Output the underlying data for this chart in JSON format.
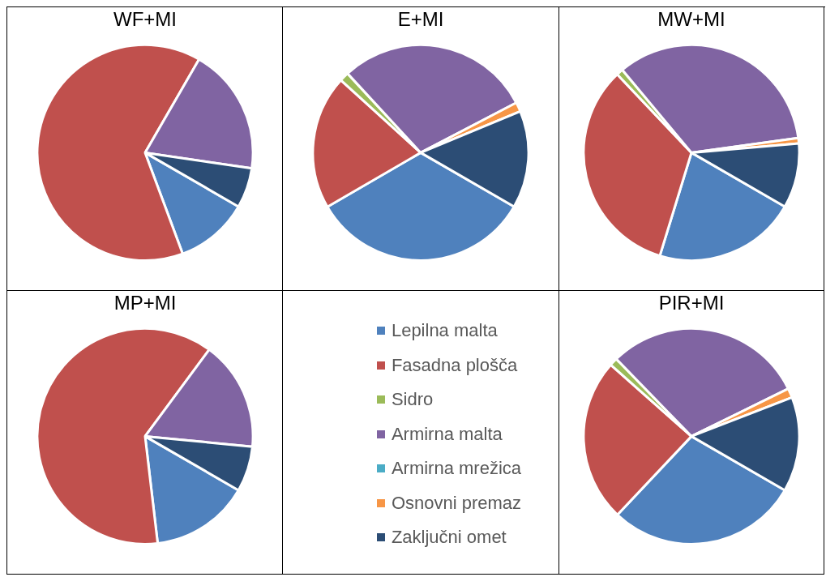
{
  "chart_data": [
    {
      "type": "pie",
      "title": "WF+MI",
      "legend": "bottom right",
      "categories": [
        "Lepilna malta",
        "Fasadna plošča",
        "Sidro",
        "Armirna malta",
        "Armirna mrežica",
        "Osnovni premaz",
        "Zaključni omet"
      ],
      "values": [
        11,
        64,
        0,
        19,
        0,
        0,
        6
      ],
      "colors": [
        "#4f81bd",
        "#c0504d",
        "#9bbb59",
        "#8064a2",
        "#4bacc6",
        "#f79646",
        "#2c4d75"
      ]
    },
    {
      "type": "pie",
      "title": "E+MI",
      "categories": [
        null,
        null,
        null,
        null,
        null,
        null,
        null
      ],
      "values": [
        33.3,
        20.1,
        1.4,
        29.2,
        0,
        1.4,
        14.6
      ],
      "colors": [
        "#4f81bd",
        "#c0504d",
        "#9bbb59",
        "#8064a2",
        "#4bacc6",
        "#f79646",
        "#2c4d75"
      ]
    },
    {
      "type": "pie",
      "title": "MW+MI",
      "categories": [
        null,
        null,
        null,
        null,
        null,
        null,
        null
      ],
      "values": [
        21.4,
        33.2,
        1,
        33.9,
        0,
        0.8,
        9.7
      ],
      "colors": [
        "#4f81bd",
        "#c0504d",
        "#9bbb59",
        "#8064a2",
        "#4bacc6",
        "#f79646",
        "#2c4d75"
      ]
    },
    {
      "type": "pie",
      "title": "MP+MI",
      "categories": [
        null,
        null,
        null,
        null,
        null,
        null,
        null
      ],
      "values": [
        14.8,
        62,
        0,
        16.4,
        0,
        0,
        6.8
      ],
      "colors": [
        "#4f81bd",
        "#c0504d",
        "#9bbb59",
        "#8064a2",
        "#4bacc6",
        "#f79646",
        "#2c4d75"
      ]
    },
    {
      "type": "pie",
      "title": "PIR+MI",
      "categories": [
        null,
        null,
        null,
        null,
        null,
        null,
        null
      ],
      "values": [
        28.7,
        24.5,
        1.2,
        30,
        0,
        1.4,
        14.2
      ],
      "colors": [
        "#4f81bd",
        "#c0504d",
        "#9bbb59",
        "#8064a2",
        "#4bacc6",
        "#f79646",
        "#2c4d75"
      ]
    }
  ]
}
